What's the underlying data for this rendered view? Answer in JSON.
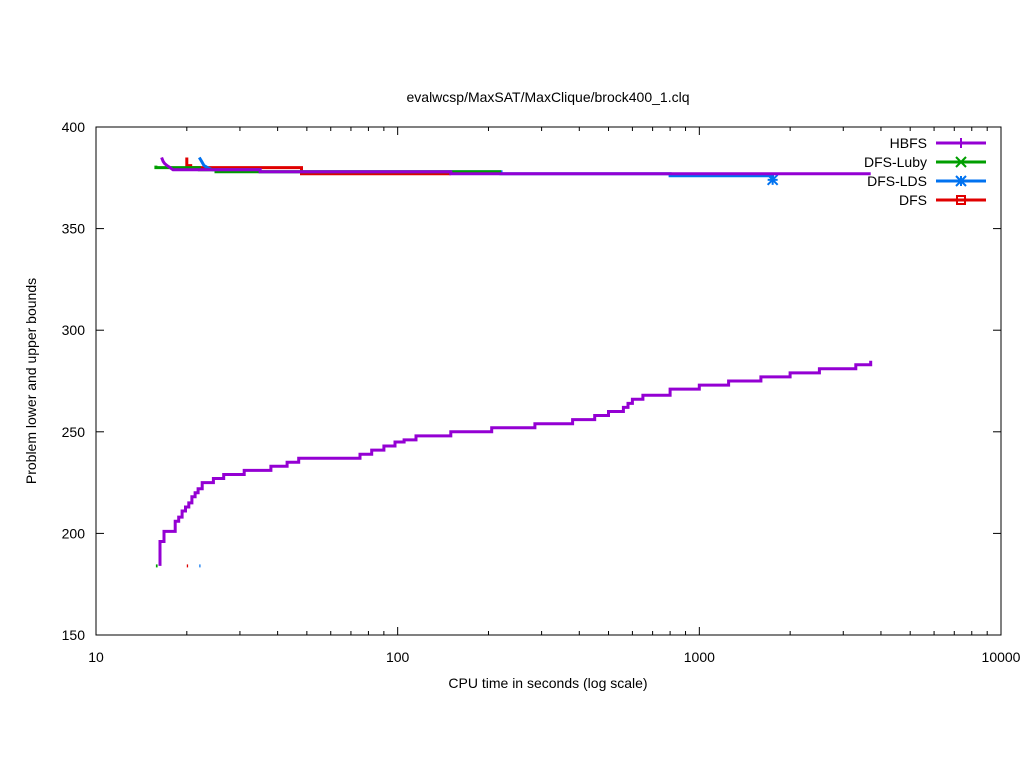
{
  "chart_data": {
    "type": "line",
    "title": "evalwcsp/MaxSAT/MaxClique/brock400_1.clq",
    "xlabel": "CPU time in seconds (log scale)",
    "ylabel": "Problem lower and upper bounds",
    "x_scale": "log",
    "xlim": [
      10,
      10000
    ],
    "ylim": [
      150,
      400
    ],
    "x_ticks": [
      10,
      100,
      1000,
      10000
    ],
    "x_tick_labels": [
      "10",
      "100",
      "1000",
      "10000"
    ],
    "y_ticks": [
      150,
      200,
      250,
      300,
      350,
      400
    ],
    "y_tick_labels": [
      "150",
      "200",
      "250",
      "300",
      "350",
      "400"
    ],
    "grid": false,
    "legend_position": "top-right",
    "series": [
      {
        "name": "HBFS",
        "color": "#9400d3",
        "marker": "plus",
        "upper": [
          [
            16.5,
            385
          ],
          [
            16.7,
            383
          ],
          [
            16.9,
            382
          ],
          [
            17.2,
            381
          ],
          [
            17.6,
            380
          ],
          [
            18,
            379
          ],
          [
            35,
            379
          ],
          [
            35,
            378
          ],
          [
            150,
            378
          ],
          [
            150,
            377
          ],
          [
            3700,
            377
          ]
        ],
        "lower": [
          [
            16.3,
            184
          ],
          [
            16.3,
            196
          ],
          [
            16.8,
            196
          ],
          [
            16.8,
            201
          ],
          [
            18.3,
            201
          ],
          [
            18.3,
            206
          ],
          [
            18.8,
            206
          ],
          [
            18.8,
            208
          ],
          [
            19.3,
            208
          ],
          [
            19.3,
            211
          ],
          [
            19.8,
            211
          ],
          [
            19.8,
            213
          ],
          [
            20.3,
            213
          ],
          [
            20.3,
            215
          ],
          [
            20.8,
            215
          ],
          [
            20.8,
            218
          ],
          [
            21.3,
            218
          ],
          [
            21.3,
            220
          ],
          [
            21.8,
            220
          ],
          [
            21.8,
            222
          ],
          [
            22.5,
            222
          ],
          [
            22.5,
            225
          ],
          [
            24.5,
            225
          ],
          [
            24.5,
            227
          ],
          [
            26.5,
            227
          ],
          [
            26.5,
            229
          ],
          [
            31,
            229
          ],
          [
            31,
            231
          ],
          [
            38,
            231
          ],
          [
            38,
            233
          ],
          [
            43,
            233
          ],
          [
            43,
            235
          ],
          [
            47,
            235
          ],
          [
            47,
            237
          ],
          [
            75,
            237
          ],
          [
            75,
            239
          ],
          [
            82,
            239
          ],
          [
            82,
            241
          ],
          [
            90,
            241
          ],
          [
            90,
            243
          ],
          [
            98,
            243
          ],
          [
            98,
            245
          ],
          [
            105,
            245
          ],
          [
            105,
            246
          ],
          [
            115,
            246
          ],
          [
            115,
            248
          ],
          [
            150,
            248
          ],
          [
            150,
            250
          ],
          [
            205,
            250
          ],
          [
            205,
            252
          ],
          [
            285,
            252
          ],
          [
            285,
            254
          ],
          [
            380,
            254
          ],
          [
            380,
            256
          ],
          [
            450,
            256
          ],
          [
            450,
            258
          ],
          [
            500,
            258
          ],
          [
            500,
            260
          ],
          [
            560,
            260
          ],
          [
            560,
            262
          ],
          [
            580,
            262
          ],
          [
            580,
            264
          ],
          [
            600,
            264
          ],
          [
            600,
            266
          ],
          [
            650,
            266
          ],
          [
            650,
            268
          ],
          [
            800,
            268
          ],
          [
            800,
            271
          ],
          [
            1000,
            271
          ],
          [
            1000,
            273
          ],
          [
            1250,
            273
          ],
          [
            1250,
            275
          ],
          [
            1600,
            275
          ],
          [
            1600,
            277
          ],
          [
            2000,
            277
          ],
          [
            2000,
            279
          ],
          [
            2500,
            279
          ],
          [
            2500,
            281
          ],
          [
            3300,
            281
          ],
          [
            3300,
            283
          ],
          [
            3700,
            283
          ],
          [
            3700,
            285
          ]
        ]
      },
      {
        "name": "DFS-Luby",
        "color": "#009e00",
        "marker": "x",
        "upper": [
          [
            15.8,
            381
          ],
          [
            15.8,
            380
          ],
          [
            22,
            380
          ],
          [
            22,
            379
          ],
          [
            25,
            379
          ],
          [
            25,
            378
          ],
          [
            220,
            378
          ]
        ],
        "lower": [
          [
            15.8,
            184
          ],
          [
            16,
            184
          ]
        ]
      },
      {
        "name": "DFS-LDS",
        "color": "#0072f0",
        "marker": "star",
        "upper": [
          [
            22,
            385
          ],
          [
            22.4,
            383
          ],
          [
            22.8,
            381
          ],
          [
            23.4,
            380
          ],
          [
            24.3,
            379
          ],
          [
            35,
            379
          ],
          [
            35,
            378
          ],
          [
            220,
            378
          ],
          [
            220,
            377
          ],
          [
            800,
            377
          ],
          [
            800,
            376
          ],
          [
            1750,
            376
          ],
          [
            1750,
            374
          ]
        ],
        "lower": [
          [
            22,
            184
          ],
          [
            22.2,
            184
          ]
        ],
        "marker_point": [
          1750,
          374
        ]
      },
      {
        "name": "DFS",
        "color": "#e00000",
        "marker": "square",
        "upper": [
          [
            20,
            385
          ],
          [
            20,
            381
          ],
          [
            20.6,
            381
          ],
          [
            20.6,
            380
          ],
          [
            48,
            380
          ],
          [
            48,
            377
          ],
          [
            150,
            377
          ]
        ],
        "lower": [
          [
            20,
            184
          ],
          [
            20.2,
            184
          ]
        ]
      }
    ]
  }
}
